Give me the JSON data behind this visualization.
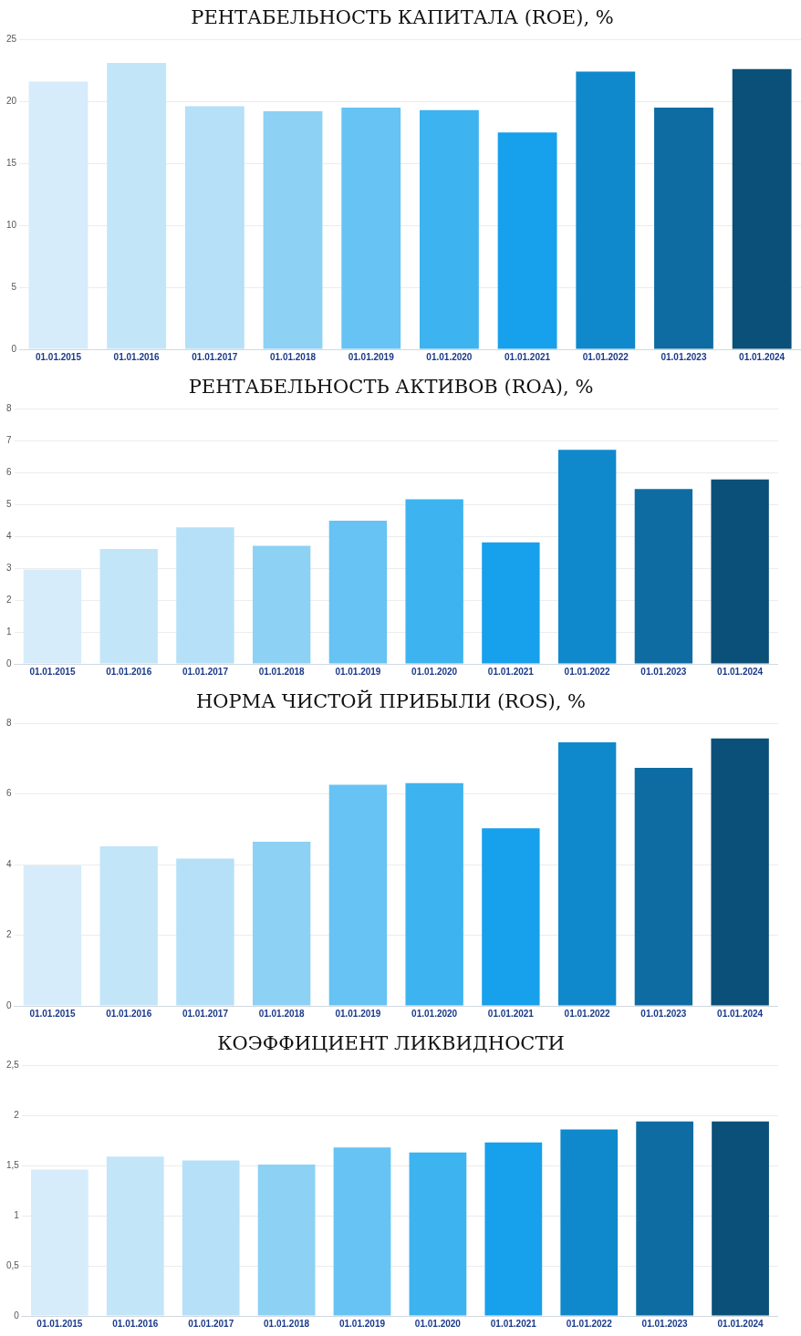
{
  "chart_data": [
    {
      "type": "bar",
      "title": "РЕНТАБЕЛЬНОСТЬ КАПИТАЛА (ROE), %",
      "categories": [
        "01.01.2015",
        "01.01.2016",
        "01.01.2017",
        "01.01.2018",
        "01.01.2019",
        "01.01.2020",
        "01.01.2021",
        "01.01.2022",
        "01.01.2023",
        "01.01.2024"
      ],
      "values": [
        21.6,
        23.1,
        19.6,
        19.2,
        19.5,
        19.3,
        17.5,
        22.4,
        19.5,
        22.6
      ],
      "colors": [
        "#d6ecfa",
        "#c3e5f8",
        "#b5e0f7",
        "#8dd1f4",
        "#66c3f3",
        "#3db3ef",
        "#17a0ec",
        "#0f89cb",
        "#0e6ca2",
        "#0a5078"
      ],
      "ylim": [
        0,
        25
      ],
      "yticks": [
        0,
        5,
        10,
        15,
        20,
        25
      ],
      "grid": "y",
      "legend": false
    },
    {
      "type": "bar",
      "title": "РЕНТАБЕЛЬНОСТЬ АКТИВОВ (ROA), %",
      "categories": [
        "01.01.2015",
        "01.01.2016",
        "01.01.2017",
        "01.01.2018",
        "01.01.2019",
        "01.01.2020",
        "01.01.2021",
        "01.01.2022",
        "01.01.2023",
        "01.01.2024"
      ],
      "values": [
        2.96,
        3.6,
        4.28,
        3.7,
        4.49,
        5.16,
        3.81,
        6.71,
        5.48,
        5.78
      ],
      "colors": [
        "#d6ecfa",
        "#c3e5f8",
        "#b5e0f7",
        "#8dd1f4",
        "#66c3f3",
        "#3db3ef",
        "#17a0ec",
        "#0f89cb",
        "#0e6ca2",
        "#0a5078"
      ],
      "ylim": [
        0,
        8
      ],
      "yticks": [
        0,
        1,
        2,
        3,
        4,
        5,
        6,
        7,
        8
      ],
      "grid": "y",
      "legend": false
    },
    {
      "type": "bar",
      "title": "НОРМА ЧИСТОЙ ПРИБЫЛИ (ROS), %",
      "categories": [
        "01.01.2015",
        "01.01.2016",
        "01.01.2017",
        "01.01.2018",
        "01.01.2019",
        "01.01.2020",
        "01.01.2021",
        "01.01.2022",
        "01.01.2023",
        "01.01.2024"
      ],
      "values": [
        3.98,
        4.52,
        4.17,
        4.65,
        6.26,
        6.31,
        5.03,
        7.46,
        6.74,
        7.57
      ],
      "colors": [
        "#d6ecfa",
        "#c3e5f8",
        "#b5e0f7",
        "#8dd1f4",
        "#66c3f3",
        "#3db3ef",
        "#17a0ec",
        "#0f89cb",
        "#0e6ca2",
        "#0a5078"
      ],
      "ylim": [
        0,
        8
      ],
      "yticks": [
        0,
        2,
        4,
        6,
        8
      ],
      "grid": "y",
      "legend": false
    },
    {
      "type": "bar",
      "title": "КОЭФФИЦИЕНТ ЛИКВИДНОСТИ",
      "categories": [
        "01.01.2015",
        "01.01.2016",
        "01.01.2017",
        "01.01.2018",
        "01.01.2019",
        "01.01.2020",
        "01.01.2021",
        "01.01.2022",
        "01.01.2023",
        "01.01.2024"
      ],
      "values": [
        1.46,
        1.59,
        1.55,
        1.51,
        1.68,
        1.63,
        1.73,
        1.86,
        1.94,
        1.94
      ],
      "colors": [
        "#d6ecfa",
        "#c3e5f8",
        "#b5e0f7",
        "#8dd1f4",
        "#66c3f3",
        "#3db3ef",
        "#17a0ec",
        "#0f89cb",
        "#0e6ca2",
        "#0a5078"
      ],
      "ylim": [
        0,
        2.5
      ],
      "yticks": [
        0,
        {
          "value": 0.5,
          "label": "0,5"
        },
        1,
        {
          "value": 1.5,
          "label": "1,5"
        },
        2,
        {
          "value": 2.5,
          "label": "2,5"
        }
      ],
      "grid": "y",
      "legend": false
    }
  ]
}
